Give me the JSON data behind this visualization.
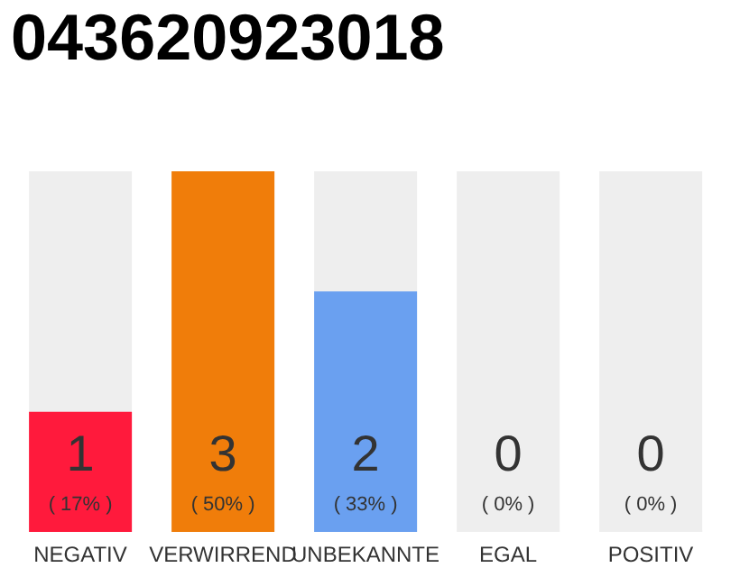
{
  "chart_data": {
    "type": "bar",
    "title": "043620923018",
    "categories": [
      "NEGATIV",
      "VERWIRREND",
      "UNBEKANNTE",
      "EGAL",
      "POSITIV"
    ],
    "values": [
      1,
      3,
      2,
      0,
      0
    ],
    "colors": [
      "#ff1a3c",
      "#f07d0a",
      "#6aa0f0",
      "#eeeeee",
      "#eeeeee"
    ],
    "ylim": [
      0,
      3
    ],
    "tick_labels": "x",
    "grid": false,
    "legend": false,
    "data_labels": true,
    "annotations": [
      "( 17% )",
      "( 50% )",
      "( 33% )",
      "( 0% )",
      "( 0% )"
    ]
  }
}
